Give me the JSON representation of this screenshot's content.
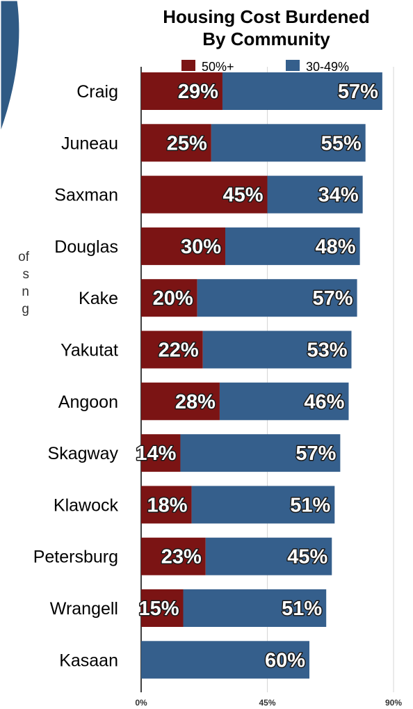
{
  "side_text": [
    "of",
    "s",
    "n",
    "g"
  ],
  "colors": {
    "accent_shape": "#2f5a84",
    "series_50plus": "#7b1414",
    "series_30_49": "#355f8c"
  },
  "chart_data": {
    "type": "bar",
    "orientation": "horizontal",
    "stacked": true,
    "title_lines": [
      "Housing Cost Burdened",
      "By Community"
    ],
    "categories": [
      "Craig",
      "Juneau",
      "Saxman",
      "Douglas",
      "Kake",
      "Yakutat",
      "Angoon",
      "Skagway",
      "Klawock",
      "Petersburg",
      "Wrangell",
      "Kasaan"
    ],
    "series": [
      {
        "name": "50%+",
        "color": "#7b1414",
        "values": [
          29,
          25,
          45,
          30,
          20,
          22,
          28,
          14,
          18,
          23,
          15,
          0
        ]
      },
      {
        "name": "30-49%",
        "color": "#355f8c",
        "values": [
          57,
          55,
          34,
          48,
          57,
          53,
          46,
          57,
          51,
          45,
          51,
          60
        ]
      }
    ],
    "value_suffix": "%",
    "xlim": [
      0,
      90
    ],
    "xticks": [
      0,
      45,
      90
    ],
    "xtick_labels": [
      "0%",
      "45%",
      "90%"
    ],
    "grid": true,
    "legend": "top"
  }
}
